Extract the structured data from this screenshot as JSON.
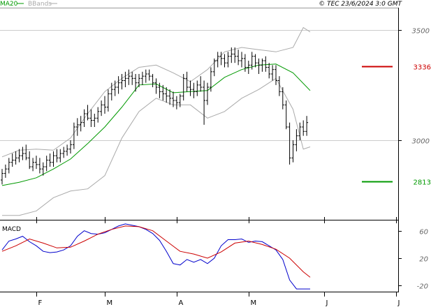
{
  "chart_data": [
    {
      "type": "line",
      "panel": "price",
      "header": {
        "legend": [
          {
            "label": "MA20",
            "color": "#009900"
          },
          {
            "label": "BBands",
            "color": "#aaaaaa"
          }
        ],
        "watermark": "© TEC 23/6/2024 3:0 GMT"
      },
      "ylim": [
        2640,
        3600
      ],
      "yticks": [
        3000,
        3500
      ],
      "ytick_labels": [
        "3000",
        "3500"
      ],
      "grid": true,
      "annotations": [
        {
          "label": "3336",
          "value": 3336,
          "color": "#cc0000"
        },
        {
          "label": "2813",
          "value": 2813,
          "color": "#009900"
        }
      ],
      "x_months": [
        {
          "label": "F",
          "x": 0
        },
        {
          "label": "M",
          "x": 20
        },
        {
          "label": "A",
          "x": 41
        },
        {
          "label": "M",
          "x": 62
        },
        {
          "label": "J",
          "x": 84
        },
        {
          "label": "J",
          "x": 105
        }
      ],
      "x_max": 105,
      "series": [
        {
          "name": "Price (OHLC bars)",
          "color": "#000000",
          "bars": [
            [
              -10,
              2820,
              2870,
              2800,
              2850
            ],
            [
              -9,
              2850,
              2890,
              2830,
              2870
            ],
            [
              -8,
              2870,
              2920,
              2850,
              2900
            ],
            [
              -7,
              2900,
              2940,
              2880,
              2910
            ],
            [
              -6,
              2910,
              2950,
              2890,
              2920
            ],
            [
              -5,
              2920,
              2960,
              2900,
              2930
            ],
            [
              -4,
              2930,
              2970,
              2910,
              2940
            ],
            [
              -3,
              2940,
              2980,
              2910,
              2920
            ],
            [
              -2,
              2920,
              2950,
              2870,
              2880
            ],
            [
              -1,
              2880,
              2920,
              2860,
              2900
            ],
            [
              0,
              2900,
              2930,
              2870,
              2890
            ],
            [
              1,
              2890,
              2920,
              2850,
              2870
            ],
            [
              2,
              2870,
              2900,
              2840,
              2880
            ],
            [
              3,
              2880,
              2930,
              2860,
              2910
            ],
            [
              4,
              2910,
              2940,
              2880,
              2900
            ],
            [
              5,
              2900,
              2950,
              2880,
              2930
            ],
            [
              6,
              2930,
              2960,
              2900,
              2920
            ],
            [
              7,
              2920,
              2960,
              2900,
              2940
            ],
            [
              8,
              2940,
              2970,
              2920,
              2950
            ],
            [
              9,
              2950,
              2980,
              2930,
              2960
            ],
            [
              10,
              2960,
              3000,
              2940,
              2980
            ],
            [
              11,
              2980,
              3080,
              2960,
              3060
            ],
            [
              12,
              3060,
              3100,
              3020,
              3070
            ],
            [
              13,
              3070,
              3110,
              3040,
              3080
            ],
            [
              14,
              3080,
              3140,
              3060,
              3120
            ],
            [
              15,
              3120,
              3160,
              3090,
              3100
            ],
            [
              16,
              3100,
              3140,
              3060,
              3090
            ],
            [
              17,
              3090,
              3120,
              3060,
              3100
            ],
            [
              18,
              3100,
              3150,
              3080,
              3130
            ],
            [
              19,
              3130,
              3180,
              3110,
              3160
            ],
            [
              20,
              3160,
              3200,
              3120,
              3150
            ],
            [
              21,
              3150,
              3230,
              3130,
              3210
            ],
            [
              22,
              3210,
              3260,
              3180,
              3230
            ],
            [
              23,
              3230,
              3270,
              3200,
              3240
            ],
            [
              24,
              3240,
              3290,
              3210,
              3260
            ],
            [
              25,
              3260,
              3300,
              3230,
              3270
            ],
            [
              26,
              3270,
              3310,
              3240,
              3280
            ],
            [
              27,
              3280,
              3320,
              3250,
              3290
            ],
            [
              28,
              3290,
              3310,
              3250,
              3280
            ],
            [
              29,
              3280,
              3300,
              3220,
              3260
            ],
            [
              30,
              3260,
              3300,
              3240,
              3280
            ],
            [
              31,
              3280,
              3310,
              3250,
              3290
            ],
            [
              32,
              3290,
              3320,
              3260,
              3300
            ],
            [
              33,
              3300,
              3320,
              3270,
              3290
            ],
            [
              34,
              3290,
              3300,
              3240,
              3260
            ],
            [
              35,
              3260,
              3280,
              3210,
              3240
            ],
            [
              36,
              3240,
              3260,
              3190,
              3220
            ],
            [
              37,
              3220,
              3250,
              3180,
              3210
            ],
            [
              38,
              3210,
              3240,
              3170,
              3200
            ],
            [
              39,
              3200,
              3230,
              3160,
              3190
            ],
            [
              40,
              3190,
              3220,
              3150,
              3180
            ],
            [
              41,
              3180,
              3200,
              3140,
              3170
            ],
            [
              42,
              3170,
              3210,
              3150,
              3200
            ],
            [
              43,
              3200,
              3300,
              3180,
              3280
            ],
            [
              44,
              3280,
              3310,
              3220,
              3240
            ],
            [
              45,
              3240,
              3270,
              3200,
              3230
            ],
            [
              46,
              3230,
              3260,
              3190,
              3220
            ],
            [
              47,
              3220,
              3270,
              3200,
              3250
            ],
            [
              48,
              3250,
              3290,
              3220,
              3240
            ],
            [
              49,
              3240,
              3270,
              3070,
              3180
            ],
            [
              50,
              3180,
              3260,
              3160,
              3240
            ],
            [
              51,
              3240,
              3330,
              3220,
              3310
            ],
            [
              52,
              3310,
              3370,
              3290,
              3360
            ],
            [
              53,
              3360,
              3400,
              3330,
              3380
            ],
            [
              54,
              3380,
              3400,
              3340,
              3370
            ],
            [
              55,
              3370,
              3390,
              3330,
              3350
            ],
            [
              56,
              3350,
              3400,
              3330,
              3380
            ],
            [
              57,
              3380,
              3420,
              3350,
              3390
            ],
            [
              58,
              3390,
              3420,
              3350,
              3380
            ],
            [
              59,
              3380,
              3410,
              3340,
              3360
            ],
            [
              60,
              3360,
              3400,
              3330,
              3370
            ],
            [
              61,
              3370,
              3390,
              3310,
              3330
            ],
            [
              62,
              3330,
              3360,
              3300,
              3340
            ],
            [
              63,
              3340,
              3400,
              3320,
              3380
            ],
            [
              64,
              3380,
              3390,
              3330,
              3350
            ],
            [
              65,
              3350,
              3370,
              3300,
              3340
            ],
            [
              66,
              3340,
              3370,
              3310,
              3360
            ],
            [
              67,
              3360,
              3380,
              3310,
              3330
            ],
            [
              68,
              3330,
              3350,
              3280,
              3300
            ],
            [
              69,
              3300,
              3340,
              3270,
              3320
            ],
            [
              70,
              3320,
              3340,
              3250,
              3270
            ],
            [
              71,
              3270,
              3290,
              3200,
              3220
            ],
            [
              72,
              3220,
              3240,
              3140,
              3160
            ],
            [
              73,
              3160,
              3180,
              3050,
              3060
            ],
            [
              74,
              3060,
              3080,
              2890,
              2920
            ],
            [
              75,
              2920,
              3000,
              2900,
              2980
            ],
            [
              76,
              2980,
              3050,
              2950,
              3020
            ],
            [
              77,
              3020,
              3080,
              3000,
              3060
            ],
            [
              78,
              3060,
              3090,
              3020,
              3040
            ],
            [
              79,
              3040,
              3110,
              3020,
              3080
            ]
          ]
        },
        {
          "name": "MA20",
          "color": "#009900",
          "x": [
            -10,
            -5,
            0,
            5,
            10,
            15,
            20,
            25,
            30,
            35,
            40,
            45,
            50,
            55,
            60,
            65,
            70,
            75,
            80
          ],
          "values": [
            2795,
            2810,
            2830,
            2870,
            2915,
            2985,
            3060,
            3150,
            3250,
            3255,
            3215,
            3220,
            3225,
            3285,
            3320,
            3340,
            3345,
            3305,
            3225
          ]
        },
        {
          "name": "BBands upper",
          "color": "#aaaaaa",
          "x": [
            -10,
            -5,
            0,
            5,
            10,
            15,
            20,
            25,
            30,
            35,
            40,
            45,
            50,
            55,
            60,
            65,
            70,
            75,
            78,
            80
          ],
          "values": [
            2925,
            2955,
            2960,
            2955,
            3010,
            3120,
            3220,
            3280,
            3330,
            3340,
            3305,
            3265,
            3320,
            3400,
            3420,
            3410,
            3400,
            3420,
            3510,
            3490
          ]
        },
        {
          "name": "BBands lower",
          "color": "#aaaaaa",
          "x": [
            -10,
            -5,
            0,
            5,
            10,
            15,
            20,
            25,
            30,
            35,
            40,
            45,
            50,
            55,
            60,
            65,
            70,
            75,
            78,
            80
          ],
          "values": [
            2660,
            2660,
            2680,
            2740,
            2770,
            2780,
            2840,
            3010,
            3130,
            3190,
            3160,
            3160,
            3100,
            3130,
            3190,
            3230,
            3280,
            3140,
            2960,
            2970
          ]
        }
      ]
    },
    {
      "type": "line",
      "panel": "macd",
      "title": "MACD",
      "ylim": [
        -29,
        73
      ],
      "yticks": [
        -20,
        20,
        60
      ],
      "ytick_labels": [
        "-20",
        "20",
        "60"
      ],
      "grid": false,
      "series": [
        {
          "name": "MACD",
          "color": "#0000cc",
          "x": [
            -10,
            -8,
            -6,
            -4,
            -2,
            0,
            2,
            4,
            6,
            8,
            10,
            12,
            14,
            16,
            18,
            20,
            22,
            24,
            26,
            28,
            30,
            32,
            34,
            36,
            38,
            40,
            42,
            44,
            46,
            48,
            50,
            52,
            54,
            56,
            58,
            60,
            62,
            64,
            66,
            68,
            70,
            72,
            74,
            76,
            78,
            80
          ],
          "values": [
            32,
            45,
            48,
            52,
            44,
            38,
            30,
            28,
            29,
            32,
            38,
            52,
            60,
            56,
            55,
            57,
            62,
            67,
            70,
            68,
            66,
            62,
            56,
            46,
            30,
            12,
            10,
            18,
            14,
            18,
            12,
            20,
            38,
            47,
            47,
            48,
            43,
            45,
            44,
            38,
            32,
            18,
            -12,
            -25,
            -25,
            -25
          ]
        },
        {
          "name": "Signal",
          "color": "#cc0000",
          "x": [
            -10,
            -6,
            -2,
            2,
            6,
            10,
            14,
            18,
            22,
            26,
            30,
            34,
            38,
            42,
            46,
            50,
            54,
            58,
            62,
            66,
            70,
            74,
            78,
            80
          ],
          "values": [
            30,
            38,
            48,
            42,
            35,
            36,
            45,
            55,
            62,
            67,
            66,
            60,
            45,
            30,
            26,
            20,
            29,
            42,
            45,
            40,
            33,
            20,
            0,
            -8
          ]
        }
      ]
    }
  ]
}
